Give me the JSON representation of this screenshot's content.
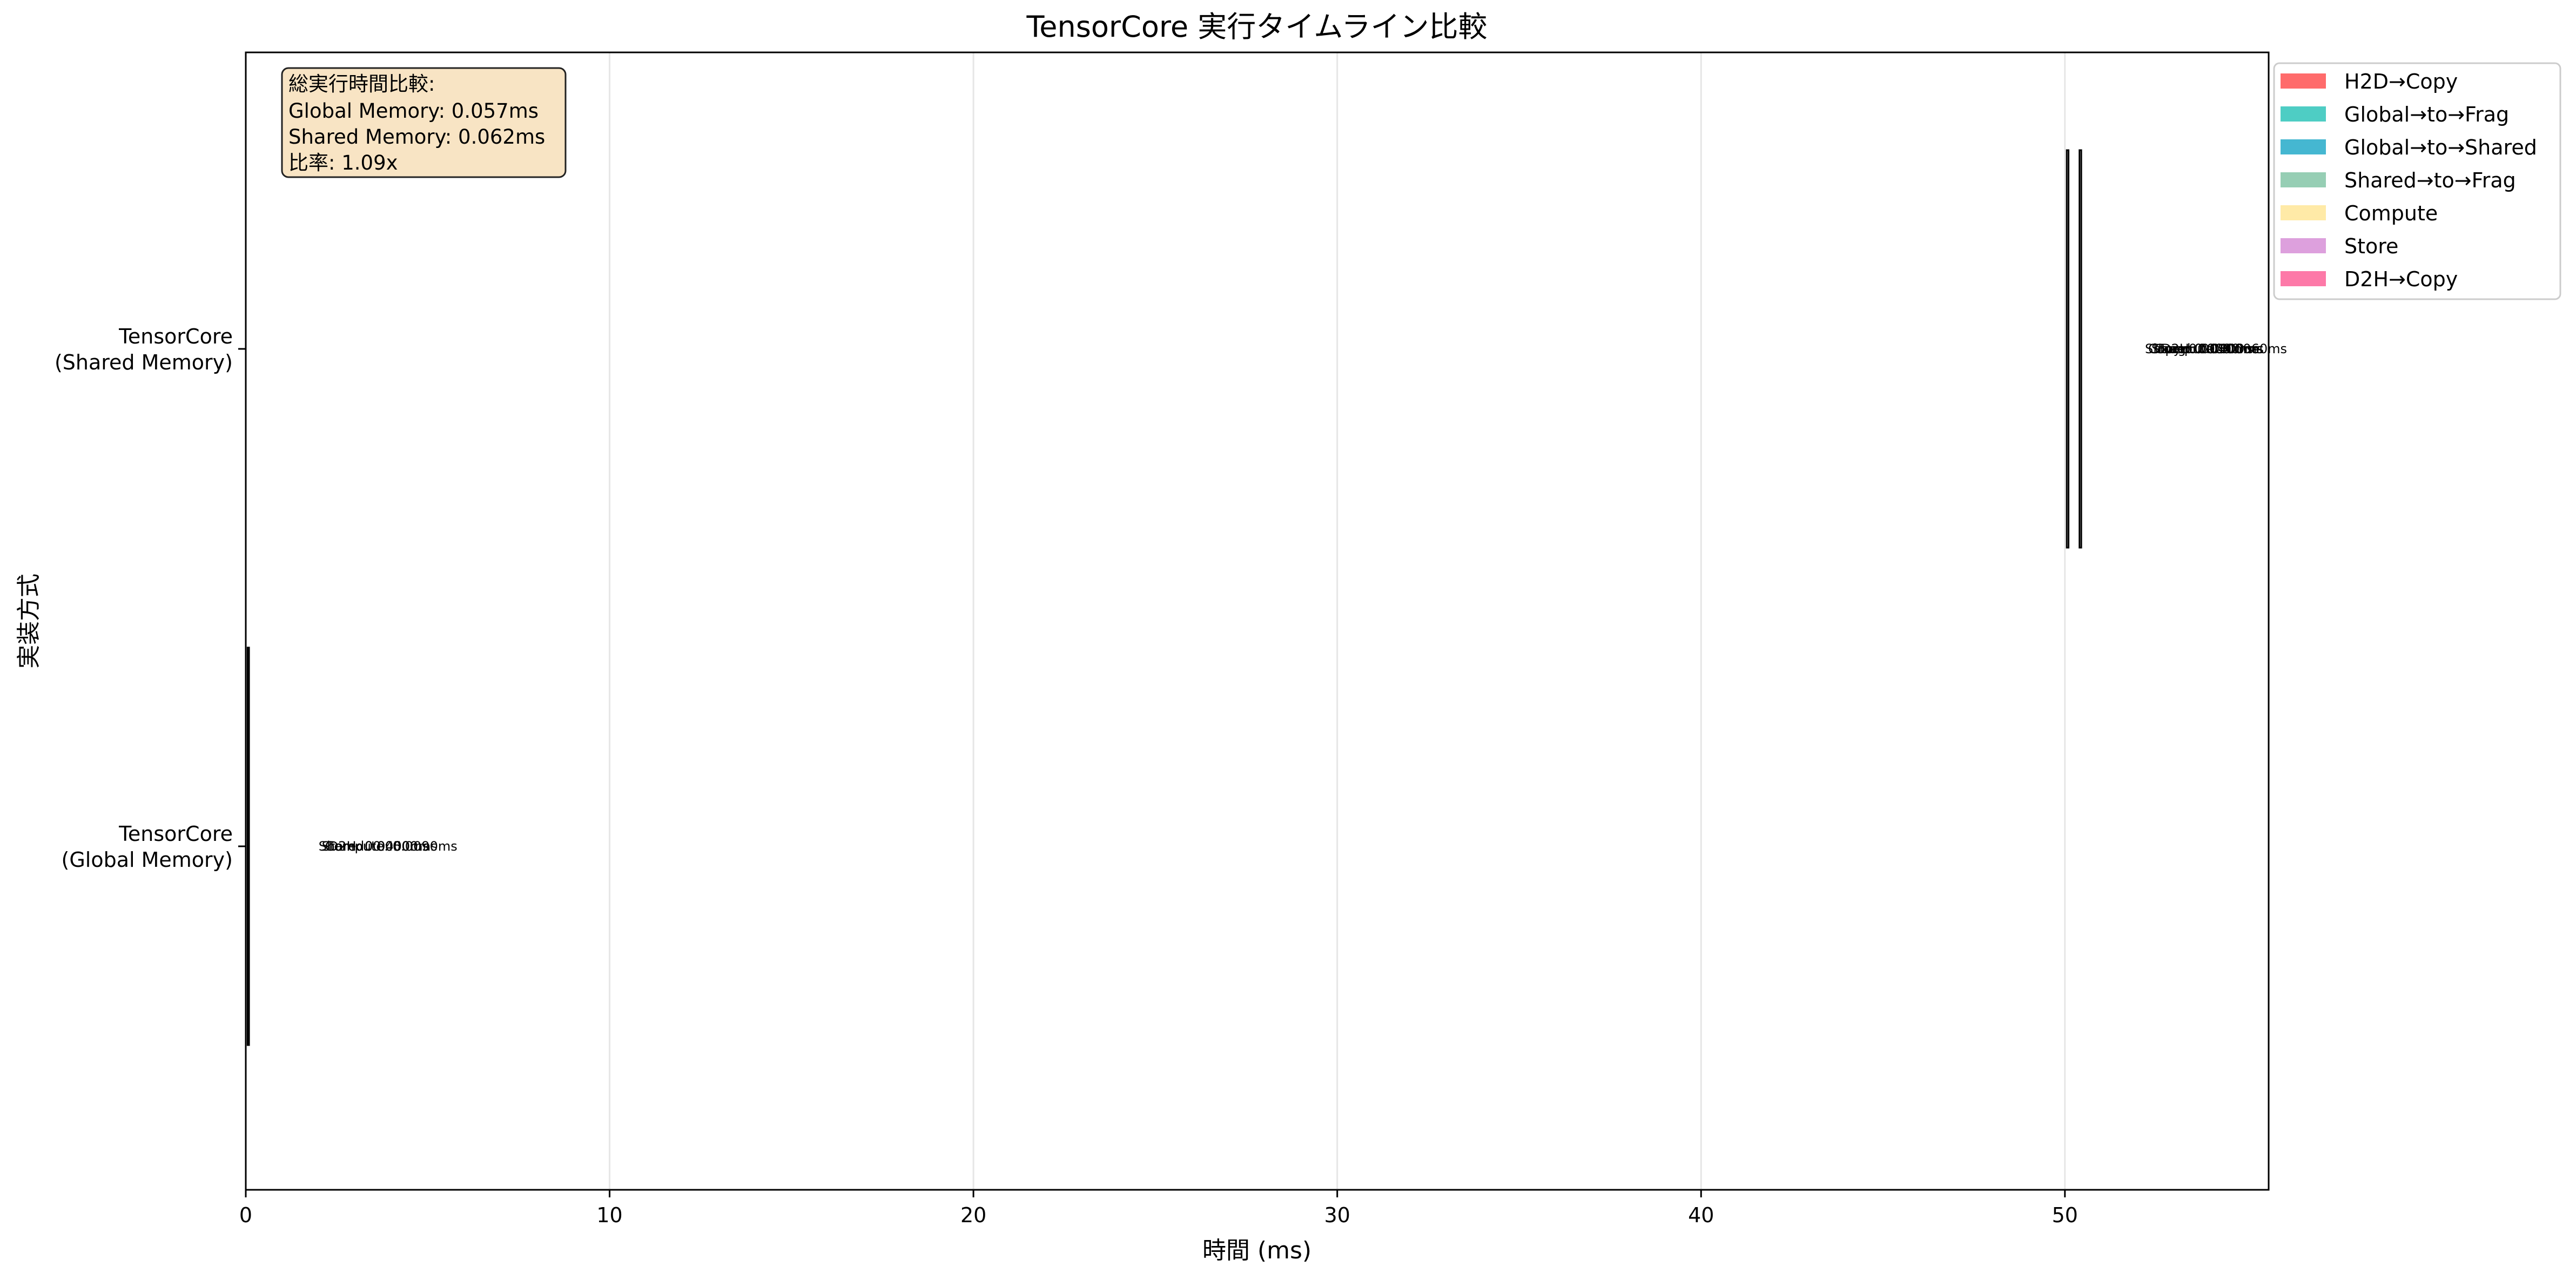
{
  "chart_data": {
    "type": "bar",
    "orientation": "horizontal",
    "title": "TensorCore 実行タイムライン比較",
    "xlabel": "時間 (ms)",
    "ylabel": "実装方式",
    "xlim": [
      0,
      55.6
    ],
    "xticks": [
      0,
      10,
      20,
      30,
      40,
      50
    ],
    "grid": "x",
    "legend_position": "top-right",
    "categories": [
      {
        "label_line1": "TensorCore",
        "label_line2": "(Global Memory)"
      },
      {
        "label_line1": "TensorCore",
        "label_line2": "(Shared Memory)"
      }
    ],
    "series": [
      {
        "name": "H2D→Copy",
        "color": "#ff6b6b"
      },
      {
        "name": "Global→to→Frag",
        "color": "#4ecdc4"
      },
      {
        "name": "Global→to→Shared",
        "color": "#45b7d1"
      },
      {
        "name": "Shared→to→Frag",
        "color": "#96ceb4"
      },
      {
        "name": "Compute",
        "color": "#ffeaa7"
      },
      {
        "name": "Store",
        "color": "#dda0dd"
      },
      {
        "name": "D2H→Copy",
        "color": "#fd79a8"
      }
    ],
    "segments": [
      {
        "category": 0,
        "start": 0.05,
        "end": 0.09
      },
      {
        "category": 1,
        "start": 50.05,
        "end": 50.1
      },
      {
        "category": 1,
        "start": 50.4,
        "end": 50.45
      }
    ],
    "bar_labels": [
      {
        "category": 0,
        "x": 2.0,
        "texts": [
          "Shared: 0.0000ms",
          "Store: 0.0050ms",
          "Compute: 0.0090ms",
          "D2H: 0.0400ms"
        ]
      },
      {
        "category": 1,
        "x": 52.2,
        "texts": [
          "Shared: 0.0000ms",
          "Copy: 0.0050ms",
          "Store: 0.0040ms",
          "Compute: 0.0060ms",
          "Frag: 0.0090ms",
          "D2H: 0.0400ms"
        ]
      }
    ],
    "annotation": {
      "title": "総実行時間比較:",
      "line1": "Global Memory: 0.057ms",
      "line2": "Shared Memory: 0.062ms",
      "line3": "比率: 1.09x"
    }
  }
}
